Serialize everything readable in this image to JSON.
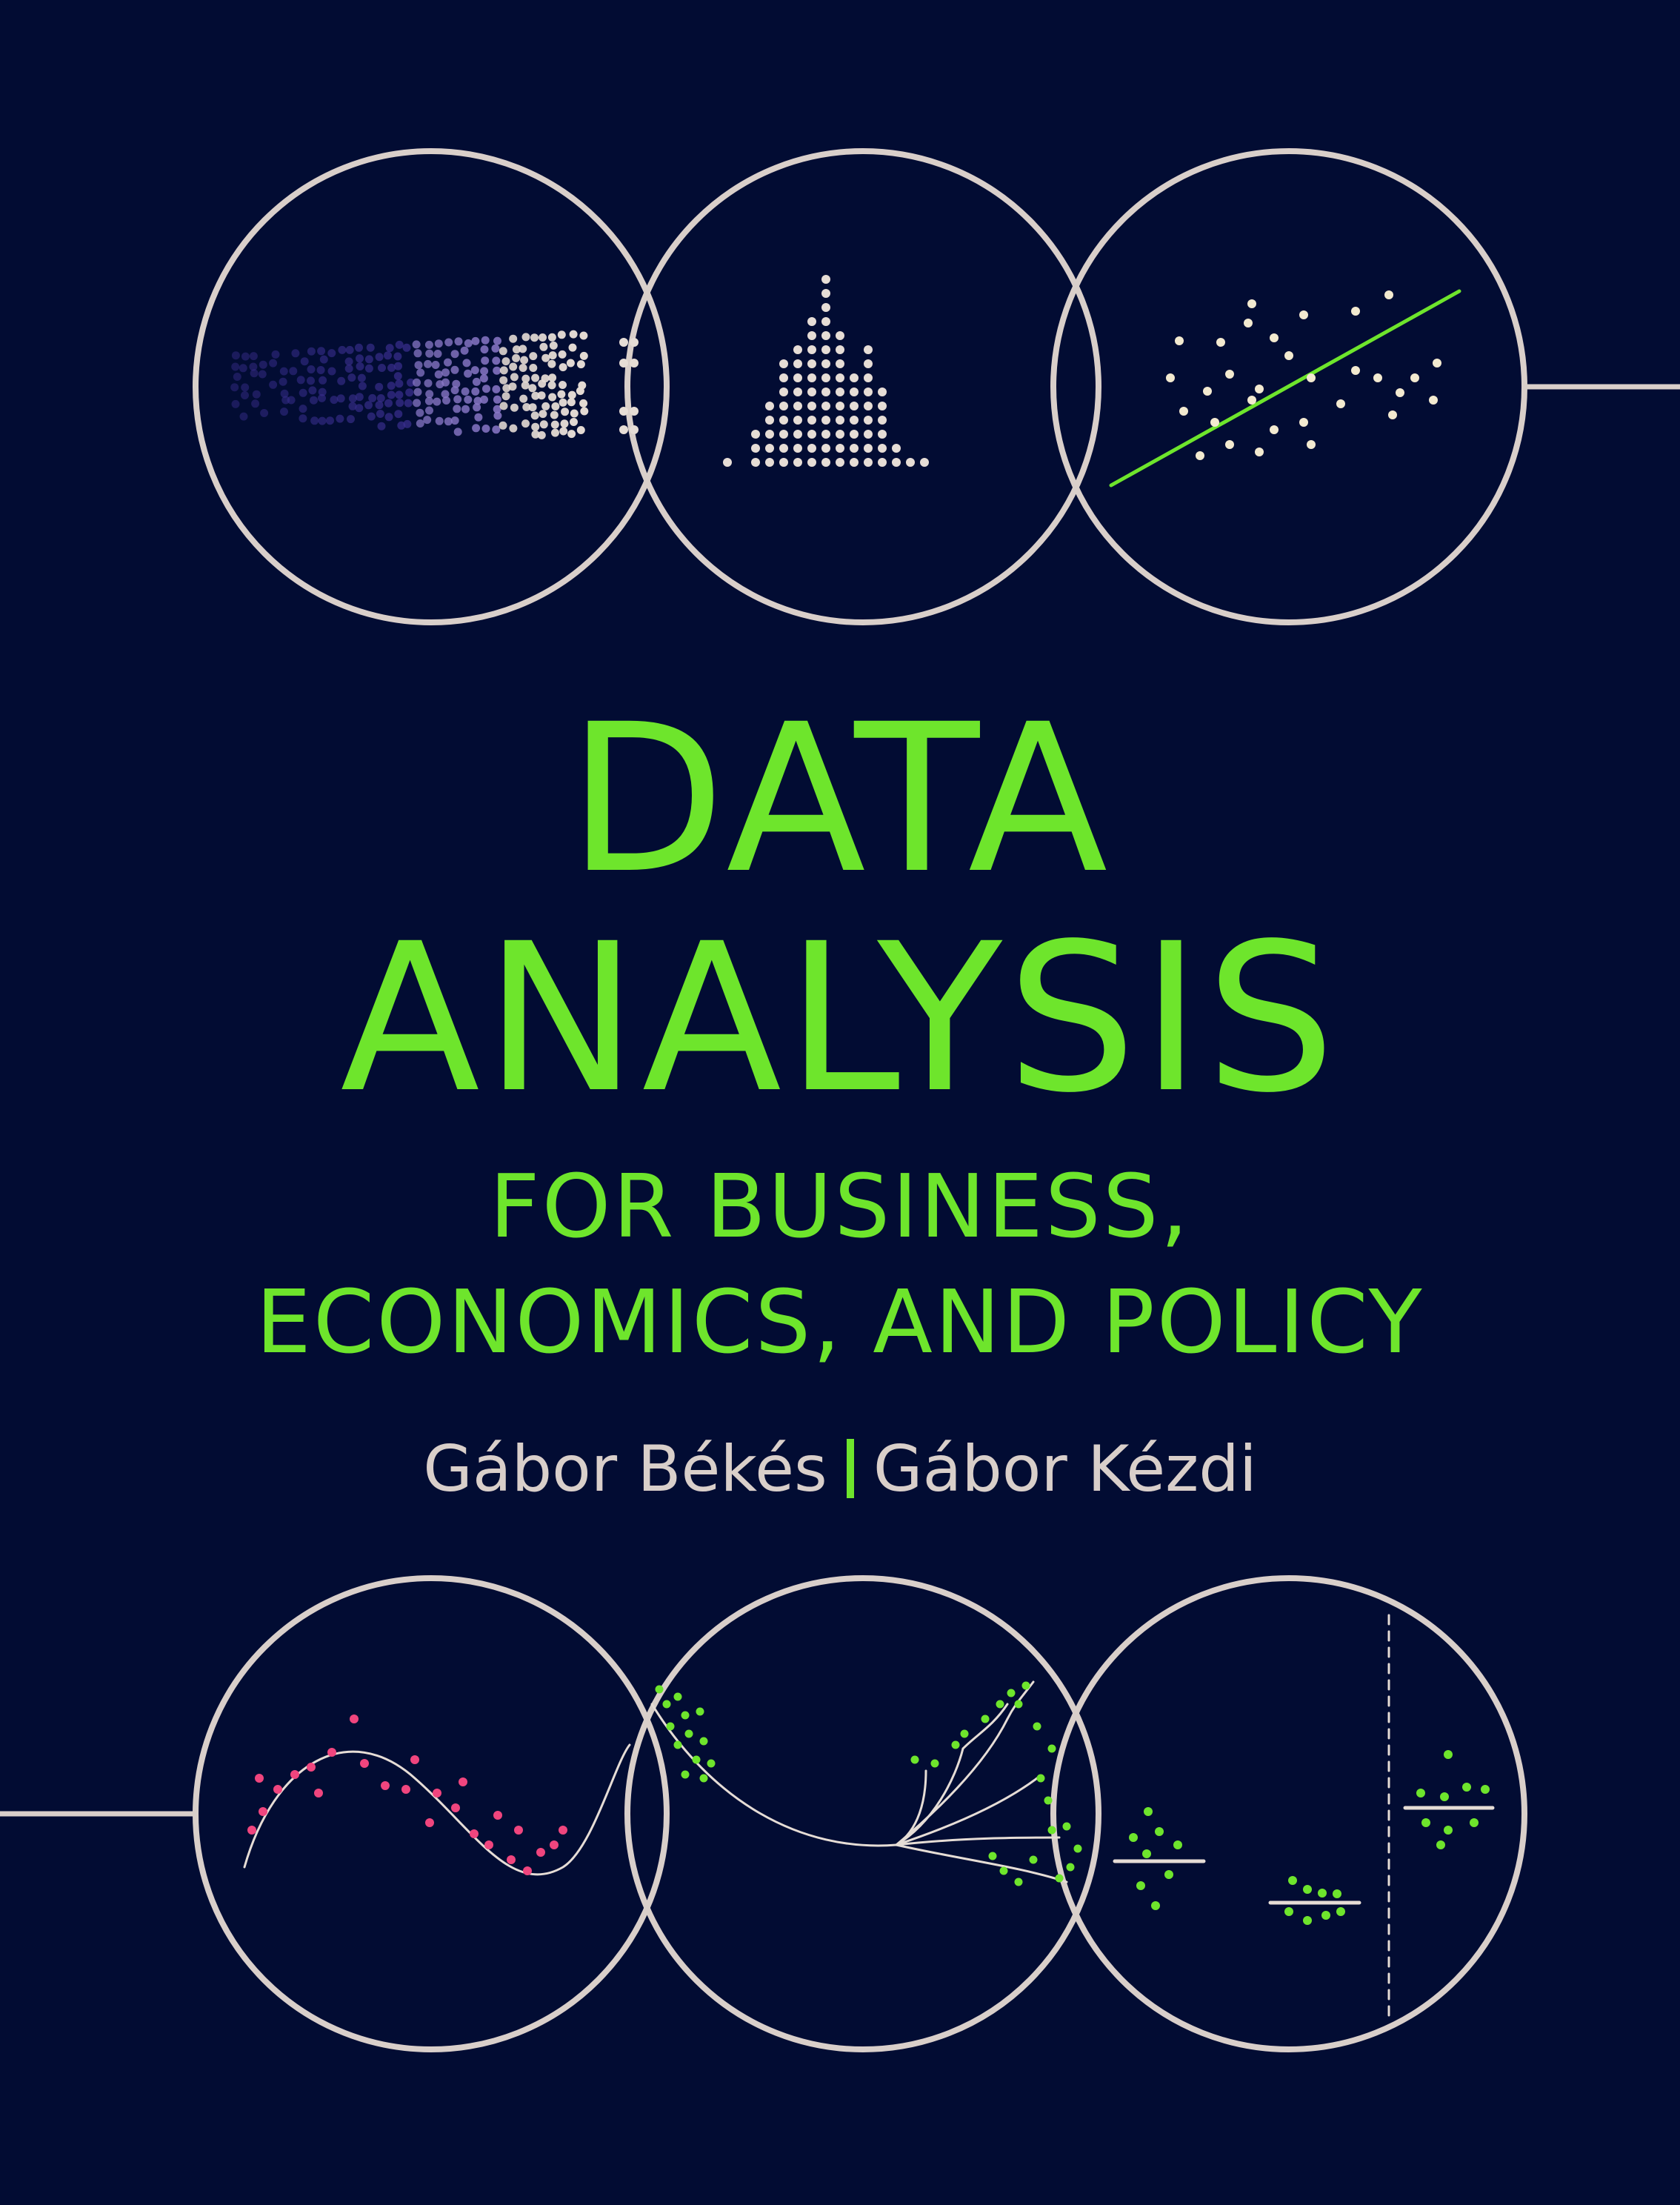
{
  "cover": {
    "title_line1": "DATA",
    "title_line2": "ANALYSIS",
    "subtitle_line1": "FOR BUSINESS,",
    "subtitle_line2": "ECONOMICS, AND POLICY",
    "author1": "Gábor Békés",
    "author2": "Gábor Kézdi"
  },
  "colors": {
    "background": "#020c33",
    "accent_green": "#6ee52c",
    "circle_outline": "#d9cfca",
    "pink_points": "#f0457e",
    "purple_points": "#6a56b8"
  },
  "icons": [
    "dot-grid-scatter-icon",
    "histogram-icon",
    "regression-line-icon",
    "curve-fit-icon",
    "branching-curve-icon",
    "group-means-icon"
  ]
}
